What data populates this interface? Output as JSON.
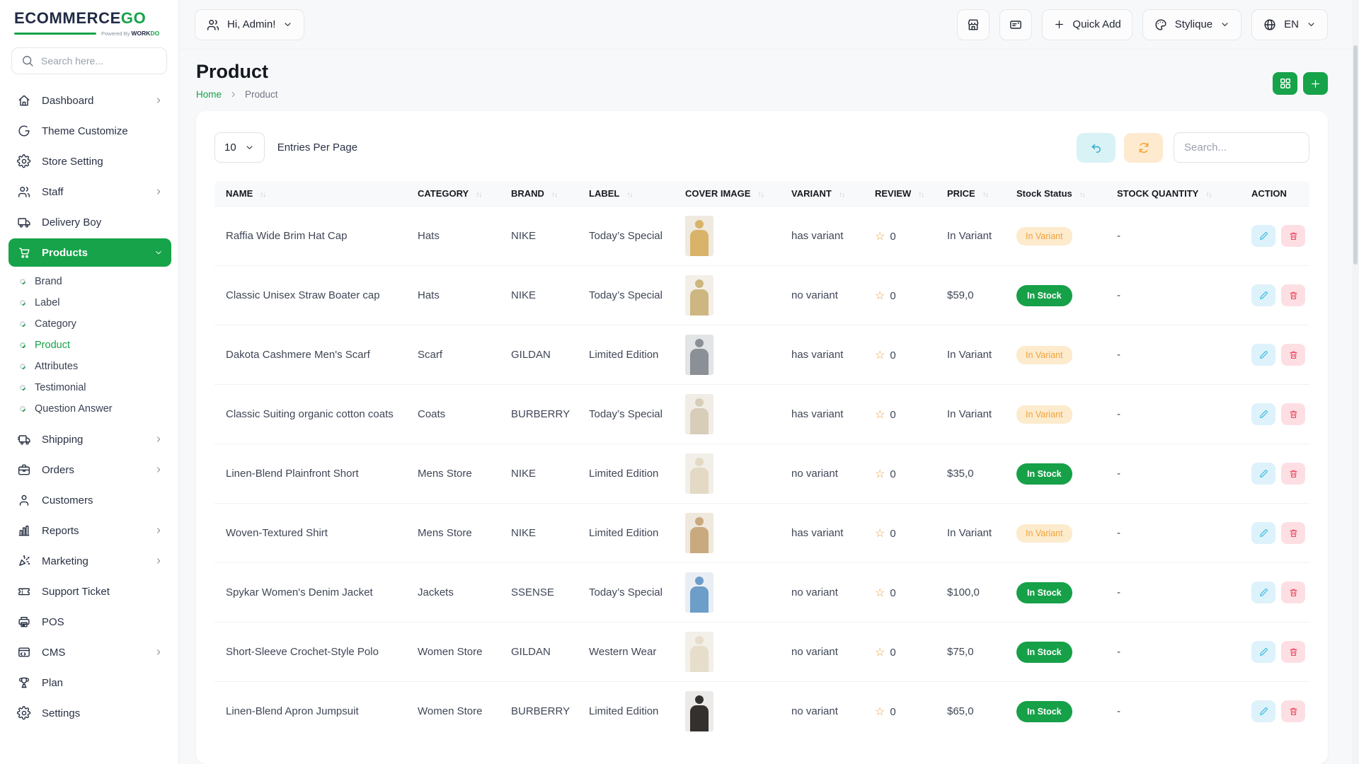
{
  "brand": {
    "name_primary": "ECOMMERCE",
    "name_accent": "GO",
    "powered_by": "Powered By",
    "powered_brand_dark": "WORK",
    "powered_brand_green": "DO"
  },
  "sidebar": {
    "search_placeholder": "Search here...",
    "items": [
      {
        "label": "Dashboard",
        "icon": "home",
        "chevron": "right"
      },
      {
        "label": "Theme Customize",
        "icon": "theme",
        "chevron": ""
      },
      {
        "label": "Store Setting",
        "icon": "gear",
        "chevron": ""
      },
      {
        "label": "Staff",
        "icon": "users",
        "chevron": "right"
      },
      {
        "label": "Delivery Boy",
        "icon": "truck",
        "chevron": ""
      },
      {
        "label": "Products",
        "icon": "cart",
        "chevron": "down",
        "active": true,
        "children": [
          {
            "label": "Brand"
          },
          {
            "label": "Label"
          },
          {
            "label": "Category"
          },
          {
            "label": "Product",
            "active": true
          },
          {
            "label": "Attributes"
          },
          {
            "label": "Testimonial"
          },
          {
            "label": "Question Answer"
          }
        ]
      },
      {
        "label": "Shipping",
        "icon": "shipping",
        "chevron": "right"
      },
      {
        "label": "Orders",
        "icon": "orders",
        "chevron": "right"
      },
      {
        "label": "Customers",
        "icon": "user",
        "chevron": ""
      },
      {
        "label": "Reports",
        "icon": "reports",
        "chevron": "right"
      },
      {
        "label": "Marketing",
        "icon": "marketing",
        "chevron": "right"
      },
      {
        "label": "Support Ticket",
        "icon": "ticket",
        "chevron": ""
      },
      {
        "label": "POS",
        "icon": "pos",
        "chevron": ""
      },
      {
        "label": "CMS",
        "icon": "cms",
        "chevron": "right"
      },
      {
        "label": "Plan",
        "icon": "plan",
        "chevron": ""
      },
      {
        "label": "Settings",
        "icon": "gear",
        "chevron": ""
      }
    ]
  },
  "topbar": {
    "user_label": "Hi, Admin!",
    "quick_add_label": "Quick Add",
    "theme_label": "Stylique",
    "language_label": "EN"
  },
  "page": {
    "title": "Product",
    "breadcrumb_home": "Home",
    "breadcrumb_current": "Product"
  },
  "controls": {
    "entries_value": "10",
    "entries_label": "Entries Per Page",
    "search_placeholder": "Search..."
  },
  "glyphs": {
    "sort": "↑↓",
    "star": "☆"
  },
  "colors": {
    "primary_green": "#16a34a",
    "badge_variant_bg": "#fcebcd",
    "badge_variant_text": "#f2a33c",
    "badge_stock_bg": "#16a048",
    "edit_button": "#ddf2fb",
    "delete_button": "#fddfe3"
  },
  "table": {
    "columns": [
      {
        "label": "NAME",
        "sortable": true
      },
      {
        "label": "CATEGORY",
        "sortable": true
      },
      {
        "label": "BRAND",
        "sortable": true
      },
      {
        "label": "LABEL",
        "sortable": true
      },
      {
        "label": "COVER IMAGE",
        "sortable": true
      },
      {
        "label": "VARIANT",
        "sortable": true
      },
      {
        "label": "REVIEW",
        "sortable": true
      },
      {
        "label": "PRICE",
        "sortable": true
      },
      {
        "label": "Stock Status",
        "sortable": true
      },
      {
        "label": "STOCK QUANTITY",
        "sortable": true
      },
      {
        "label": "ACTION",
        "sortable": false
      }
    ],
    "rows": [
      {
        "name": "Raffia Wide Brim Hat Cap",
        "category": "Hats",
        "brand": "NIKE",
        "label": "Today’s Special",
        "variant": "has variant",
        "review": "0",
        "price": "In Variant",
        "stock_status": "In Variant",
        "stock_status_type": "variant",
        "stock_quantity": "-",
        "image": {
          "bg": "#efe9df",
          "acc": "#d9b36a"
        }
      },
      {
        "name": "Classic Unisex Straw Boater cap",
        "category": "Hats",
        "brand": "NIKE",
        "label": "Today’s Special",
        "variant": "no variant",
        "review": "0",
        "price": "$59,0",
        "stock_status": "In Stock",
        "stock_status_type": "stock",
        "stock_quantity": "-",
        "image": {
          "bg": "#f3efe8",
          "acc": "#cdb67f"
        }
      },
      {
        "name": "Dakota Cashmere Men's Scarf",
        "category": "Scarf",
        "brand": "GILDAN",
        "label": "Limited Edition",
        "variant": "has variant",
        "review": "0",
        "price": "In Variant",
        "stock_status": "In Variant",
        "stock_status_type": "variant",
        "stock_quantity": "-",
        "image": {
          "bg": "#e3e4e6",
          "acc": "#8b8f96"
        }
      },
      {
        "name": "Classic Suiting organic cotton coats",
        "category": "Coats",
        "brand": "BURBERRY",
        "label": "Today’s Special",
        "variant": "has variant",
        "review": "0",
        "price": "In Variant",
        "stock_status": "In Variant",
        "stock_status_type": "variant",
        "stock_quantity": "-",
        "image": {
          "bg": "#f1ede6",
          "acc": "#d8cdb9"
        }
      },
      {
        "name": "Linen-Blend Plainfront Short",
        "category": "Mens Store",
        "brand": "NIKE",
        "label": "Limited Edition",
        "variant": "no variant",
        "review": "0",
        "price": "$35,0",
        "stock_status": "In Stock",
        "stock_status_type": "stock",
        "stock_quantity": "-",
        "image": {
          "bg": "#f2efe9",
          "acc": "#e3d9c4"
        }
      },
      {
        "name": "Woven-Textured Shirt",
        "category": "Mens Store",
        "brand": "NIKE",
        "label": "Limited Edition",
        "variant": "has variant",
        "review": "0",
        "price": "In Variant",
        "stock_status": "In Variant",
        "stock_status_type": "variant",
        "stock_quantity": "-",
        "image": {
          "bg": "#efe8dd",
          "acc": "#c9a97e"
        }
      },
      {
        "name": "Spykar Women's Denim Jacket",
        "category": "Jackets",
        "brand": "SSENSE",
        "label": "Today’s Special",
        "variant": "no variant",
        "review": "0",
        "price": "$100,0",
        "stock_status": "In Stock",
        "stock_status_type": "stock",
        "stock_quantity": "-",
        "image": {
          "bg": "#e9eef4",
          "acc": "#6d9dc9"
        }
      },
      {
        "name": "Short-Sleeve Crochet-Style Polo",
        "category": "Women Store",
        "brand": "GILDAN",
        "label": "Western Wear",
        "variant": "no variant",
        "review": "0",
        "price": "$75,0",
        "stock_status": "In Stock",
        "stock_status_type": "stock",
        "stock_quantity": "-",
        "image": {
          "bg": "#f3f0ea",
          "acc": "#e6ddcb"
        }
      },
      {
        "name": "Linen-Blend Apron Jumpsuit",
        "category": "Women Store",
        "brand": "BURBERRY",
        "label": "Limited Edition",
        "variant": "no variant",
        "review": "0",
        "price": "$65,0",
        "stock_status": "In Stock",
        "stock_status_type": "stock",
        "stock_quantity": "-",
        "image": {
          "bg": "#eceae8",
          "acc": "#33302e"
        }
      }
    ]
  }
}
